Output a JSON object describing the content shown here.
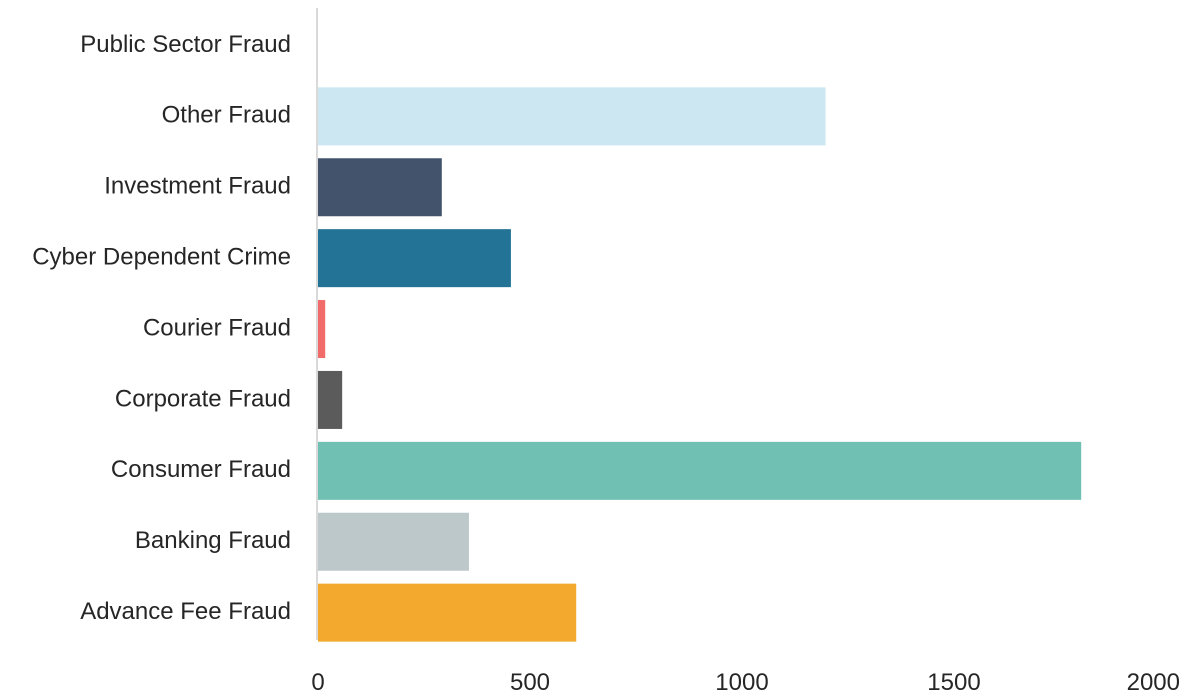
{
  "chart_data": {
    "type": "bar",
    "orientation": "horizontal",
    "title": "",
    "xlabel": "",
    "ylabel": "",
    "categories": [
      "Public Sector Fraud",
      "Other Fraud",
      "Investment Fraud",
      "Cyber Dependent Crime",
      "Courier Fraud",
      "Corporate Fraud",
      "Consumer Fraud",
      "Banking Fraud",
      "Advance Fee Fraud"
    ],
    "values": [
      0,
      1197,
      292,
      455,
      17,
      57,
      1800,
      356,
      609
    ],
    "colors": [
      "#d9d9d9",
      "#cce6f2",
      "#42536b",
      "#237396",
      "#f26b6b",
      "#5b5b5b",
      "#70c0b3",
      "#bcc8c9",
      "#f2a92e"
    ],
    "xlim": [
      0,
      2000
    ],
    "xticks": [
      0,
      500,
      1000,
      1500,
      2000
    ],
    "grid": false,
    "legend": "none",
    "axis_color": "#d9d9d9"
  }
}
